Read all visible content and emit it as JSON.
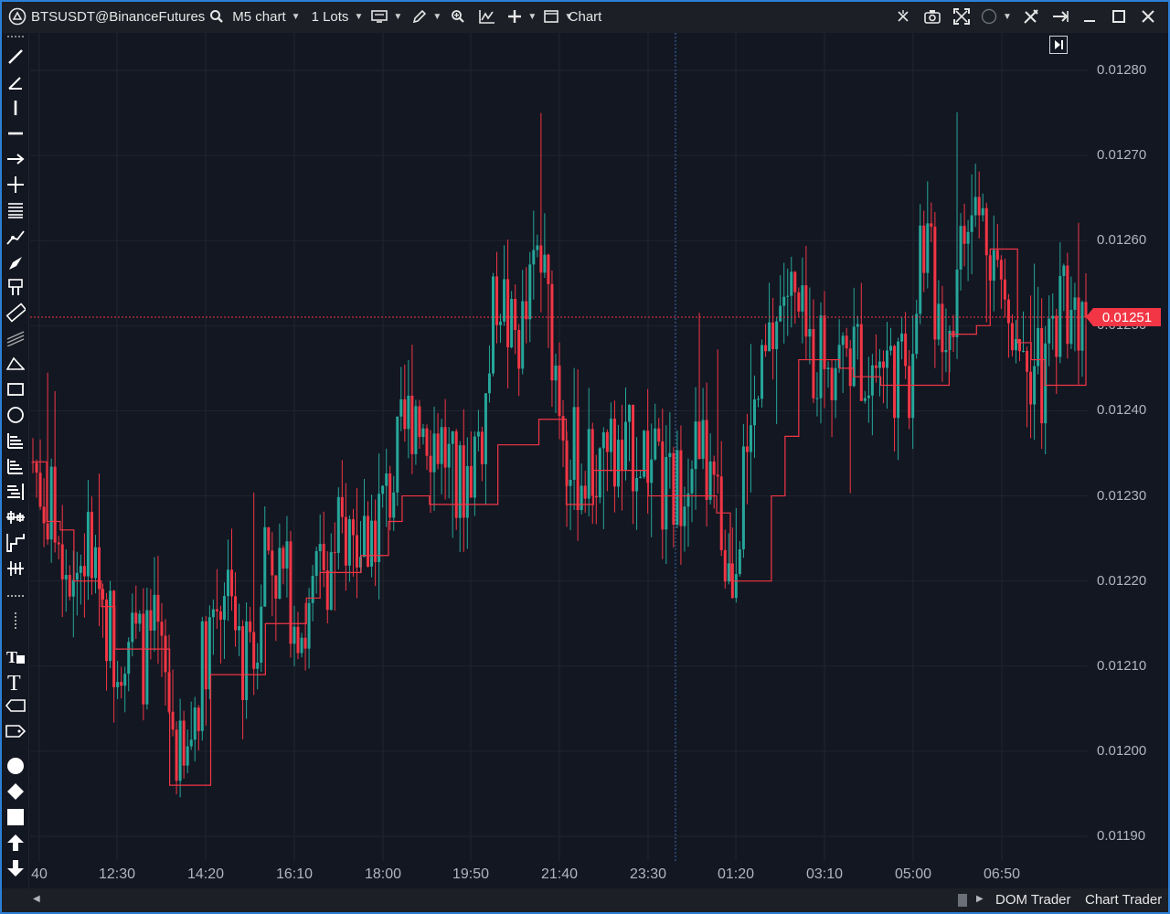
{
  "titlebar": {
    "symbol": "BTSUSDT@BinanceFutures",
    "timeframe": "M5 chart",
    "lots": "1 Lots",
    "title": "Chart"
  },
  "colors": {
    "background": "#131722",
    "bull": "#26a69a",
    "bear": "#f23645",
    "indicator": "#f23645",
    "accent": "#2b7fd6"
  },
  "toolbar_icons": [
    "drag-handle-icon",
    "trend-line-icon",
    "ray-icon",
    "vertical-line-icon",
    "horizontal-line-icon",
    "arrow-line-icon",
    "cross-line-icon",
    "fib-levels-icon",
    "polyline-icon",
    "brush-icon",
    "ruler-box-icon",
    "ruler-icon",
    "parallel-channel-icon",
    "triangle-icon",
    "rectangle-icon",
    "ellipse-icon",
    "gann-icon",
    "fib-fan-icon",
    "regression-icon",
    "pitchfork-icon",
    "steps-icon",
    "multi-line-icon",
    "dotted-h-icon",
    "dotted-v-icon",
    "text-lock-icon",
    "text-icon",
    "label-icon",
    "price-tag-icon",
    "circle-marker-icon",
    "diamond-marker-icon",
    "square-marker-icon",
    "arrow-up-icon",
    "arrow-down-icon"
  ],
  "price_axis": {
    "labels": [
      "0.01280",
      "0.01270",
      "0.01260",
      "0.01250",
      "0.01240",
      "0.01230",
      "0.01220",
      "0.01210",
      "0.01200",
      "0.01190"
    ],
    "current_price": "0.01251"
  },
  "time_axis": {
    "labels": [
      "40",
      "12:30",
      "14:20",
      "16:10",
      "18:00",
      "19:50",
      "21:40",
      "23:30",
      "01:20",
      "03:10",
      "05:00",
      "06:50"
    ]
  },
  "bottom": {
    "tab_dom": "DOM Trader",
    "tab_chart": "Chart Trader"
  },
  "chart_data": {
    "type": "candlestick",
    "symbol": "BTSUSDT@BinanceFutures",
    "timeframe": "M5",
    "ylim": [
      0.0119,
      0.0128
    ],
    "current_price": 0.01251,
    "x": [
      "40",
      "12:30",
      "14:20",
      "16:10",
      "18:00",
      "19:50",
      "21:40",
      "23:30",
      "01:20",
      "03:10",
      "05:00",
      "06:50"
    ],
    "close_path": [
      0.01234,
      0.01229,
      0.01226,
      0.01221,
      0.01224,
      0.01219,
      0.01212,
      0.01214,
      0.01211,
      0.01213,
      0.01205,
      0.01196,
      0.01207,
      0.01216,
      0.0122,
      0.01212,
      0.01209,
      0.01225,
      0.01221,
      0.01218,
      0.01214,
      0.01221,
      0.01224,
      0.01226,
      0.01224,
      0.01227,
      0.0123,
      0.01236,
      0.01242,
      0.01238,
      0.01236,
      0.0123,
      0.01234,
      0.01239,
      0.01256,
      0.01248,
      0.0125,
      0.01259,
      0.01248,
      0.01237,
      0.01233,
      0.01233,
      0.01236,
      0.01233,
      0.01236,
      0.01235,
      0.0123,
      0.0123,
      0.01236,
      0.01234,
      0.01228,
      0.0122,
      0.01232,
      0.01241,
      0.01248,
      0.01255,
      0.0125,
      0.01246,
      0.01248,
      0.01246,
      0.01247,
      0.01245,
      0.01246,
      0.01245,
      0.01243,
      0.01262,
      0.01253,
      0.0125,
      0.0126,
      0.01263,
      0.01261,
      0.01252,
      0.01251,
      0.01246,
      0.01243,
      0.01254,
      0.01253,
      0.01251
    ],
    "indicator_path": [
      0.01234,
      0.01227,
      0.01226,
      0.0122,
      0.0122,
      0.01217,
      0.01212,
      0.01212,
      0.01212,
      0.01212,
      0.01196,
      0.01196,
      0.01196,
      0.01209,
      0.01209,
      0.01209,
      0.01209,
      0.01215,
      0.01215,
      0.01215,
      0.01218,
      0.01221,
      0.01221,
      0.01221,
      0.01223,
      0.01223,
      0.01227,
      0.0123,
      0.0123,
      0.01229,
      0.01229,
      0.01229,
      0.01229,
      0.01229,
      0.01236,
      0.01236,
      0.01236,
      0.01239,
      0.01239,
      0.01229,
      0.01229,
      0.01233,
      0.01233,
      0.01233,
      0.01233,
      0.0123,
      0.0123,
      0.0123,
      0.0123,
      0.0123,
      0.01228,
      0.0122,
      0.0122,
      0.0122,
      0.0123,
      0.01237,
      0.01246,
      0.01246,
      0.01246,
      0.01245,
      0.01244,
      0.01244,
      0.01243,
      0.01243,
      0.01243,
      0.01243,
      0.01243,
      0.01249,
      0.01249,
      0.0125,
      0.01259,
      0.01259,
      0.01248,
      0.01246,
      0.01243,
      0.01243,
      0.01243,
      0.0125
    ]
  }
}
